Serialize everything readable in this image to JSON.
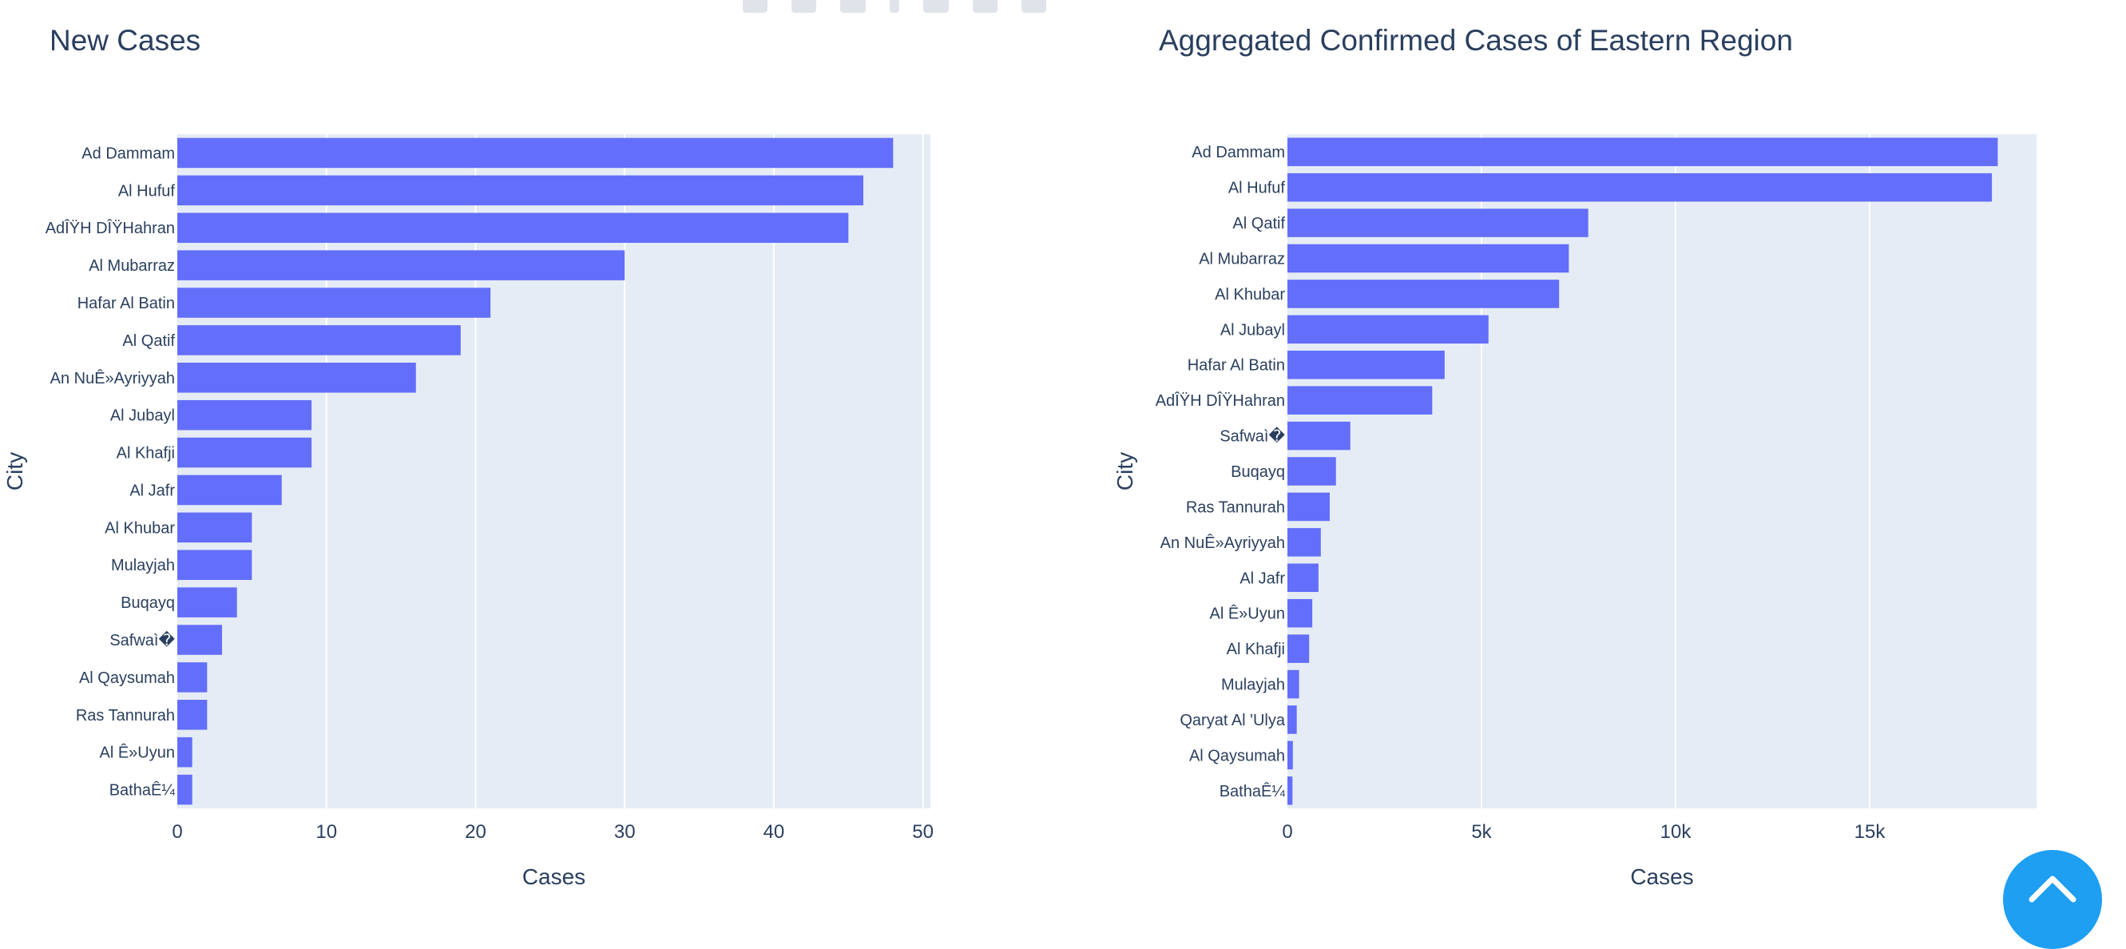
{
  "modebar": {
    "icons": [
      "camera-icon",
      "box-select-icon",
      "lasso-icon",
      "separator-icon",
      "compare-hover-icon",
      "single-hover-icon",
      "plotly-logo-icon"
    ]
  },
  "fab": {
    "icon": "chevron-up-icon",
    "color": "#1e9ff2"
  },
  "chart_data": [
    {
      "type": "bar",
      "orientation": "horizontal",
      "title": "New Cases",
      "xlabel": "Cases",
      "ylabel": "City",
      "xlim": [
        0,
        50.5
      ],
      "xticks": [
        0,
        10,
        20,
        30,
        40,
        50
      ],
      "xtick_labels": [
        "0",
        "10",
        "20",
        "30",
        "40",
        "50"
      ],
      "bar_color": "#636efa",
      "plot_bgcolor": "#e5ecf6",
      "grid": true,
      "categories": [
        "Ad Dammam",
        "Al Hufuf",
        "AdÎŸH DÎŸHahran",
        "Al Mubarraz",
        "Hafar Al Batin",
        "Al Qatif",
        "An NuÊ»Ayriyyah",
        "Al Jubayl",
        "Al Khafji",
        "Al Jafr",
        "Al Khubar",
        "Mulayjah",
        "Buqayq",
        "Safwaì�",
        "Al Qaysumah",
        "Ras Tannurah",
        "Al Ê»Uyun",
        "BathaÊ¼"
      ],
      "values": [
        48,
        46,
        45,
        30,
        21,
        19,
        16,
        9,
        9,
        7,
        5,
        5,
        4,
        3,
        2,
        2,
        1,
        1
      ]
    },
    {
      "type": "bar",
      "orientation": "horizontal",
      "title": "Aggregated Confirmed Cases of Eastern Region",
      "xlabel": "Cases",
      "ylabel": "City",
      "xlim": [
        0,
        19300
      ],
      "xticks": [
        0,
        5000,
        10000,
        15000
      ],
      "xtick_labels": [
        "0",
        "5k",
        "10k",
        "15k"
      ],
      "bar_color": "#636efa",
      "plot_bgcolor": "#e5ecf6",
      "grid": true,
      "categories": [
        "Ad Dammam",
        "Al Hufuf",
        "Al Qatif",
        "Al Mubarraz",
        "Al Khubar",
        "Al Jubayl",
        "Hafar Al Batin",
        "AdÎŸH DÎŸHahran",
        "Safwaì�",
        "Buqayq",
        "Ras Tannurah",
        "An NuÊ»Ayriyyah",
        "Al Jafr",
        "Al Ê»Uyun",
        "Al Khafji",
        "Mulayjah",
        "Qaryat Al 'Ulya",
        "Al Qaysumah",
        "BathaÊ¼"
      ],
      "values": [
        18300,
        18150,
        7750,
        7250,
        7000,
        5180,
        4050,
        3730,
        1620,
        1250,
        1090,
        860,
        800,
        640,
        560,
        300,
        240,
        140,
        130
      ]
    }
  ]
}
